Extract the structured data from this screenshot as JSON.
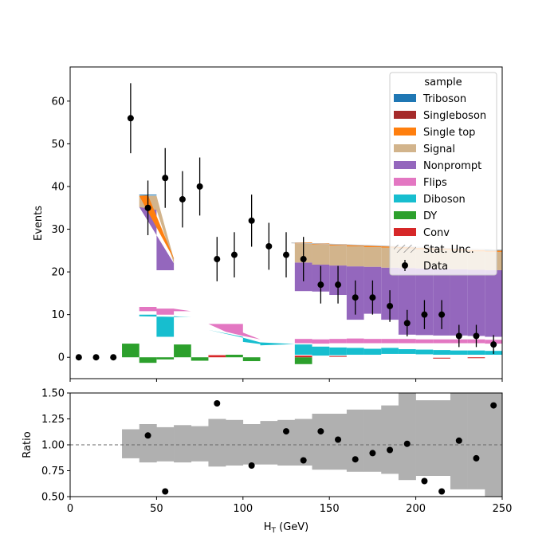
{
  "chart_data": [
    {
      "type": "bar",
      "subtype": "stacked histogram with data points",
      "xlabel": "",
      "ylabel": "Events",
      "xlim": [
        0,
        250
      ],
      "ylim": [
        -5,
        68
      ],
      "yticks": [
        0,
        10,
        20,
        30,
        40,
        50,
        60
      ],
      "grid": false,
      "legend": {
        "title": "sample",
        "placement": "top-right",
        "entries": [
          {
            "label": "Triboson",
            "color": "#1f77b4",
            "kind": "patch"
          },
          {
            "label": "Singleboson",
            "color": "#a52a2a",
            "kind": "patch"
          },
          {
            "label": "Single top",
            "color": "#ff7f0e",
            "kind": "patch"
          },
          {
            "label": "Signal",
            "color": "#d2b48c",
            "kind": "patch"
          },
          {
            "label": "Nonprompt",
            "color": "#9467bd",
            "kind": "patch"
          },
          {
            "label": "Flips",
            "color": "#e377c2",
            "kind": "patch"
          },
          {
            "label": "Diboson",
            "color": "#17becf",
            "kind": "patch"
          },
          {
            "label": "DY",
            "color": "#2ca02c",
            "kind": "patch"
          },
          {
            "label": "Conv",
            "color": "#d62728",
            "kind": "patch"
          },
          {
            "label": "Stat. Unc.",
            "color": "#888888",
            "kind": "hatch"
          },
          {
            "label": "Data",
            "color": "#000000",
            "kind": "errorbar"
          }
        ]
      },
      "data_points": {
        "name": "Data",
        "x": [
          5,
          15,
          25,
          35,
          45,
          55,
          65,
          75,
          85,
          95,
          105,
          115,
          125,
          135,
          145,
          155,
          165,
          175,
          185,
          195,
          205,
          215,
          225,
          235,
          245
        ],
        "y": [
          0,
          0,
          0,
          56,
          35,
          42,
          37,
          40,
          23,
          24,
          32,
          26,
          24,
          23,
          17,
          17,
          14,
          14,
          12,
          8,
          10,
          10,
          5,
          5,
          3
        ],
        "yerr": [
          0,
          0,
          0,
          8.2,
          6.4,
          7.0,
          6.6,
          6.8,
          5.2,
          5.3,
          6.1,
          5.5,
          5.3,
          5.2,
          4.4,
          4.4,
          4.0,
          4.0,
          3.7,
          3.1,
          3.4,
          3.4,
          2.6,
          2.6,
          2.2
        ]
      },
      "stack_bands": [
        {
          "name": "DY",
          "color": "#2ca02c",
          "bins": [
            [
              30,
              40,
              0,
              3.2
            ],
            [
              40,
              50,
              -1.3,
              0
            ],
            [
              50,
              60,
              -0.5,
              0
            ],
            [
              60,
              70,
              0,
              3
            ],
            [
              70,
              80,
              -0.8,
              0
            ],
            [
              90,
              100,
              0,
              0.6
            ],
            [
              100,
              110,
              -0.9,
              0
            ],
            [
              130,
              140,
              -1.6,
              0
            ]
          ]
        },
        {
          "name": "Conv",
          "color": "#d62728",
          "bins": [
            [
              80,
              90,
              0,
              0.5
            ],
            [
              130,
              140,
              0,
              0.4
            ],
            [
              150,
              160,
              0.1,
              0.3
            ],
            [
              210,
              220,
              -0.3,
              -0.1
            ],
            [
              230,
              240,
              -0.2,
              0
            ]
          ]
        },
        {
          "name": "Diboson",
          "color": "#17becf",
          "bins": [
            [
              130,
              140,
              0.6,
              3
            ],
            [
              140,
              150,
              0.4,
              2.5
            ],
            [
              150,
              160,
              0.5,
              2.3
            ],
            [
              160,
              170,
              0.6,
              2.2
            ],
            [
              170,
              180,
              0.6,
              2
            ],
            [
              180,
              190,
              0.8,
              2.2
            ],
            [
              190,
              200,
              0.8,
              1.9
            ],
            [
              200,
              210,
              0.7,
              1.8
            ],
            [
              210,
              220,
              0.6,
              1.7
            ],
            [
              220,
              230,
              0.6,
              1.6
            ],
            [
              230,
              240,
              0.6,
              1.6
            ],
            [
              240,
              250,
              0.6,
              1.5
            ]
          ]
        },
        {
          "name": "Flips",
          "color": "#e377c2",
          "bins": [
            [
              130,
              140,
              3.3,
              4.3
            ],
            [
              140,
              150,
              3.2,
              4.2
            ],
            [
              150,
              160,
              3.3,
              4.3
            ],
            [
              160,
              170,
              3.3,
              4.4
            ],
            [
              170,
              180,
              3.3,
              4.3
            ],
            [
              180,
              190,
              3.3,
              4.3
            ],
            [
              190,
              200,
              3.3,
              4.3
            ],
            [
              200,
              210,
              3.3,
              4.2
            ],
            [
              210,
              220,
              3.3,
              4.2
            ],
            [
              220,
              230,
              3.3,
              4.2
            ],
            [
              230,
              240,
              3.3,
              4.2
            ],
            [
              240,
              250,
              3.2,
              4.1
            ]
          ]
        },
        {
          "name": "Nonprompt",
          "color": "#9467bd",
          "bins": [
            [
              130,
              140,
              15.5,
              22.2
            ],
            [
              140,
              150,
              15.4,
              21.7
            ],
            [
              150,
              160,
              14.6,
              21.5
            ],
            [
              160,
              170,
              8.8,
              21.3
            ],
            [
              170,
              180,
              10.2,
              21.2
            ],
            [
              180,
              190,
              8.8,
              21
            ],
            [
              190,
              200,
              5.3,
              20.9
            ],
            [
              200,
              210,
              5.2,
              20.8
            ],
            [
              210,
              220,
              5.1,
              20.7
            ],
            [
              220,
              230,
              5.1,
              20.6
            ],
            [
              230,
              240,
              5,
              20.5
            ],
            [
              240,
              250,
              4.8,
              20.4
            ]
          ]
        },
        {
          "name": "Signal",
          "color": "#d2b48c",
          "bins": [
            [
              130,
              140,
              22.2,
              26.6
            ],
            [
              140,
              150,
              21.7,
              26.4
            ],
            [
              150,
              160,
              21.5,
              26.2
            ],
            [
              160,
              170,
              21.3,
              26
            ],
            [
              170,
              180,
              21.2,
              25.8
            ],
            [
              180,
              190,
              21,
              25.7
            ],
            [
              190,
              200,
              20.9,
              25.5
            ],
            [
              200,
              210,
              20.8,
              25.3
            ],
            [
              210,
              220,
              20.7,
              25.2
            ],
            [
              220,
              230,
              20.6,
              25
            ],
            [
              230,
              240,
              20.5,
              24.8
            ],
            [
              240,
              250,
              20.4,
              24.7
            ]
          ]
        },
        {
          "name": "Single top",
          "color": "#ff7f0e",
          "bins": [
            [
              130,
              140,
              26.6,
              26.9
            ],
            [
              140,
              150,
              26.4,
              26.7
            ],
            [
              150,
              160,
              26.2,
              26.5
            ],
            [
              160,
              170,
              26,
              26.3
            ],
            [
              170,
              180,
              25.8,
              26.1
            ],
            [
              180,
              190,
              25.7,
              26
            ],
            [
              190,
              200,
              25.5,
              25.8
            ],
            [
              200,
              210,
              25.3,
              25.6
            ],
            [
              210,
              220,
              25.2,
              25.5
            ],
            [
              220,
              230,
              25,
              25.3
            ],
            [
              230,
              240,
              24.8,
              25.1
            ],
            [
              240,
              250,
              24.7,
              25
            ]
          ]
        },
        {
          "name": "Triboson",
          "color": "#1f77b4",
          "bins": [
            [
              240,
              250,
              25,
              25.2
            ]
          ]
        }
      ],
      "shards": [
        {
          "name": "Nonprompt",
          "color": "#9467bd",
          "points": [
            [
              40,
              35.2
            ],
            [
              50,
              35.2
            ],
            [
              50,
              20.4
            ],
            [
              60,
              20.4
            ],
            [
              60,
              22
            ]
          ]
        },
        {
          "name": "Signal",
          "color": "#d2b48c",
          "points": [
            [
              40,
              37.8
            ],
            [
              50,
              37.8
            ],
            [
              60,
              23
            ],
            [
              60,
              22
            ],
            [
              50,
              34.5
            ],
            [
              40,
              35.2
            ]
          ]
        },
        {
          "name": "Single top",
          "color": "#ff7f0e",
          "points": [
            [
              40,
              37.8
            ],
            [
              45,
              38
            ],
            [
              60,
              23.2
            ],
            [
              60,
              23
            ]
          ]
        },
        {
          "name": "Triboson",
          "color": "#1f77b4",
          "points": [
            [
              40,
              38.1
            ],
            [
              50,
              38.1
            ],
            [
              50,
              37.9
            ],
            [
              40,
              37.9
            ]
          ]
        },
        {
          "name": "Flips",
          "color": "#e377c2",
          "points": [
            [
              40,
              11.8
            ],
            [
              50,
              11.8
            ],
            [
              50,
              11.4
            ],
            [
              60,
              11.4
            ],
            [
              70,
              10.8
            ],
            [
              50,
              10.8
            ],
            [
              40,
              10.8
            ]
          ]
        },
        {
          "name": "Flips",
          "color": "#e377c2",
          "points": [
            [
              50,
              11.4
            ],
            [
              60,
              11.4
            ],
            [
              60,
              10
            ],
            [
              50,
              10
            ]
          ]
        },
        {
          "name": "Diboson",
          "color": "#17becf",
          "points": [
            [
              40,
              10
            ],
            [
              50,
              10
            ],
            [
              50,
              4.8
            ],
            [
              60,
              4.8
            ],
            [
              60,
              9.6
            ],
            [
              70,
              9.4
            ],
            [
              40,
              9.6
            ]
          ]
        },
        {
          "name": "Flips",
          "color": "#e377c2",
          "points": [
            [
              80,
              7.8
            ],
            [
              100,
              7.8
            ],
            [
              100,
              5.8
            ],
            [
              110,
              4.2
            ],
            [
              100,
              5
            ],
            [
              90,
              6
            ]
          ]
        },
        {
          "name": "Diboson",
          "color": "#17becf",
          "points": [
            [
              80,
              6.4
            ],
            [
              100,
              4.8
            ],
            [
              100,
              3.6
            ],
            [
              110,
              3.1
            ],
            [
              110,
              2.8
            ],
            [
              130,
              3.1
            ],
            [
              110,
              3.5
            ],
            [
              100,
              4.6
            ]
          ]
        },
        {
          "name": "Stat. Unc.",
          "color": "#bfbfbf",
          "points": [
            [
              128,
              26.9
            ],
            [
              250,
              25.2
            ],
            [
              250,
              25
            ],
            [
              128,
              26.7
            ]
          ]
        }
      ]
    },
    {
      "type": "scatter",
      "subtype": "ratio panel",
      "xlabel": "H_T (GeV)",
      "ylabel": "Ratio",
      "xlim": [
        0,
        250
      ],
      "ylim": [
        0.5,
        1.5
      ],
      "xticks": [
        0,
        50,
        100,
        150,
        200,
        250
      ],
      "yticks": [
        0.5,
        0.75,
        1.0,
        1.25,
        1.5
      ],
      "reference_line": 1.0,
      "uncertainty_band": {
        "color": "#b0b0b0",
        "bins": [
          [
            30,
            40,
            0.87,
            1.15
          ],
          [
            40,
            50,
            0.83,
            1.2
          ],
          [
            50,
            60,
            0.84,
            1.17
          ],
          [
            60,
            70,
            0.83,
            1.19
          ],
          [
            70,
            80,
            0.84,
            1.18
          ],
          [
            80,
            90,
            0.79,
            1.25
          ],
          [
            90,
            100,
            0.8,
            1.24
          ],
          [
            100,
            110,
            0.81,
            1.2
          ],
          [
            110,
            120,
            0.81,
            1.23
          ],
          [
            120,
            130,
            0.8,
            1.24
          ],
          [
            130,
            140,
            0.8,
            1.25
          ],
          [
            140,
            150,
            0.76,
            1.3
          ],
          [
            150,
            160,
            0.76,
            1.3
          ],
          [
            160,
            170,
            0.74,
            1.34
          ],
          [
            170,
            180,
            0.74,
            1.34
          ],
          [
            180,
            190,
            0.72,
            1.38
          ],
          [
            190,
            200,
            0.66,
            1.5
          ],
          [
            200,
            210,
            0.7,
            1.43
          ],
          [
            210,
            220,
            0.7,
            1.43
          ],
          [
            220,
            230,
            0.57,
            1.5
          ],
          [
            230,
            240,
            0.57,
            1.5
          ],
          [
            240,
            250,
            0.5,
            1.5
          ]
        ]
      },
      "points": {
        "x": [
          45,
          55,
          85,
          105,
          125,
          135,
          145,
          155,
          165,
          175,
          185,
          195,
          205,
          215,
          225,
          235,
          245
        ],
        "y": [
          1.09,
          0.55,
          1.4,
          0.8,
          1.13,
          0.85,
          1.13,
          1.05,
          0.86,
          0.92,
          0.95,
          1.01,
          0.65,
          0.55,
          1.04,
          0.87,
          1.38
        ]
      }
    }
  ],
  "ytick_labels_main": [
    "0",
    "10",
    "20",
    "30",
    "40",
    "50",
    "60"
  ],
  "ytick_labels_ratio": [
    "0.50",
    "0.75",
    "1.00",
    "1.25",
    "1.50"
  ],
  "xtick_labels": [
    "0",
    "50",
    "100",
    "150",
    "200",
    "250"
  ]
}
